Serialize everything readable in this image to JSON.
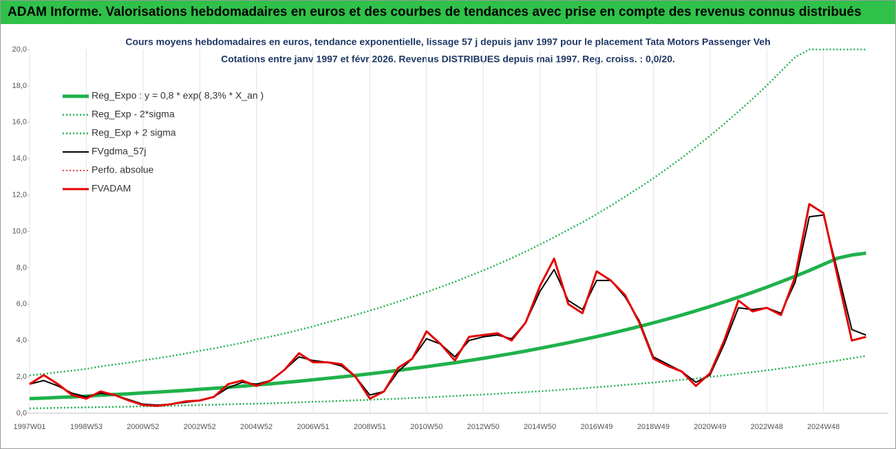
{
  "chart_data": {
    "type": "line",
    "header": "ADAM Informe. Valorisations hebdomadaires en euros et des courbes de tendances avec prise en compte des revenus connus distribués",
    "title": "Cours moyens hebdomadaires en euros, tendance exponentielle, lissage 57 j depuis janv 1997 pour le placement Tata Motors Passenger Veh",
    "subtitle": "Cotations entre janv 1997 et févr 2026. Revenus DISTRIBUES depuis mai 1997. Reg. croiss. : 0,0/20.",
    "categories": [
      "1997W01",
      null,
      null,
      null,
      "1998W53",
      null,
      null,
      null,
      "2000W52",
      null,
      null,
      null,
      "2002W52",
      null,
      null,
      null,
      "2004W52",
      null,
      null,
      null,
      "2006W51",
      null,
      null,
      null,
      "2008W51",
      null,
      null,
      null,
      "2010W50",
      null,
      null,
      null,
      "2012W50",
      null,
      null,
      null,
      "2014W50",
      null,
      null,
      null,
      "2016W49",
      null,
      null,
      null,
      "2018W49",
      null,
      null,
      null,
      "2020W49",
      null,
      null,
      null,
      "2022W48",
      null,
      null,
      null,
      "2024W48",
      null,
      null,
      null
    ],
    "ylim": [
      0,
      20
    ],
    "yticks": [
      {
        "value": 0,
        "label": "0,0"
      },
      {
        "value": 2,
        "label": "2,0"
      },
      {
        "value": 4,
        "label": "4,0"
      },
      {
        "value": 6,
        "label": "6,0"
      },
      {
        "value": 8,
        "label": "8,0"
      },
      {
        "value": 10,
        "label": "10,0"
      },
      {
        "value": 12,
        "label": "12,0"
      },
      {
        "value": 14,
        "label": "14,0"
      },
      {
        "value": 16,
        "label": "16,0"
      },
      {
        "value": 18,
        "label": "18,0"
      },
      {
        "value": 20,
        "label": "20,0"
      }
    ],
    "grid": "x",
    "legend": "top-left",
    "series": [
      {
        "name": "Reg_Expo : y = 0,8 * exp( 8,3% *  X_an )",
        "color": "#1fb14b",
        "width": 5,
        "dash": "solid",
        "values": [
          0.8,
          0.83,
          0.87,
          0.9,
          0.94,
          0.99,
          1.03,
          1.07,
          1.12,
          1.16,
          1.21,
          1.26,
          1.32,
          1.37,
          1.43,
          1.49,
          1.56,
          1.62,
          1.69,
          1.76,
          1.84,
          1.92,
          2.0,
          2.08,
          2.17,
          2.26,
          2.36,
          2.46,
          2.56,
          2.67,
          2.78,
          2.9,
          3.02,
          3.15,
          3.28,
          3.42,
          3.57,
          3.72,
          3.88,
          4.04,
          4.21,
          4.39,
          4.58,
          4.77,
          4.97,
          5.18,
          5.4,
          5.63,
          5.87,
          6.12,
          6.38,
          6.65,
          6.93,
          7.23,
          7.53,
          7.85,
          8.19,
          8.53,
          8.7,
          8.8
        ]
      },
      {
        "name": "Reg_Exp - 2*sigma",
        "color": "#1fb14b",
        "width": 2.5,
        "dash": "dotted",
        "values": [
          0.27,
          0.28,
          0.3,
          0.31,
          0.32,
          0.34,
          0.35,
          0.36,
          0.38,
          0.39,
          0.41,
          0.43,
          0.45,
          0.47,
          0.49,
          0.51,
          0.53,
          0.55,
          0.57,
          0.6,
          0.63,
          0.65,
          0.68,
          0.71,
          0.74,
          0.77,
          0.8,
          0.84,
          0.87,
          0.91,
          0.95,
          0.99,
          1.03,
          1.07,
          1.12,
          1.16,
          1.21,
          1.26,
          1.32,
          1.37,
          1.43,
          1.49,
          1.56,
          1.62,
          1.69,
          1.76,
          1.84,
          1.91,
          2.0,
          2.08,
          2.17,
          2.26,
          2.36,
          2.46,
          2.56,
          2.67,
          2.78,
          2.9,
          3.03,
          3.15
        ]
      },
      {
        "name": "Reg_Exp + 2 sigma",
        "color": "#1fb14b",
        "width": 2.5,
        "dash": "dotted",
        "values": [
          2.08,
          2.16,
          2.26,
          2.34,
          2.44,
          2.57,
          2.68,
          2.78,
          2.91,
          3.02,
          3.15,
          3.28,
          3.43,
          3.56,
          3.72,
          3.87,
          4.06,
          4.21,
          4.39,
          4.58,
          4.78,
          4.99,
          5.2,
          5.41,
          5.64,
          5.88,
          6.14,
          6.4,
          6.66,
          6.94,
          7.23,
          7.54,
          7.85,
          8.19,
          8.53,
          8.89,
          9.28,
          9.67,
          10.09,
          10.5,
          10.95,
          11.41,
          11.91,
          12.4,
          12.92,
          13.47,
          14.04,
          14.64,
          15.26,
          15.91,
          16.59,
          17.29,
          18.02,
          18.8,
          19.58,
          20,
          20,
          20,
          20,
          20
        ]
      },
      {
        "name": "FVgdma_57j",
        "color": "#000000",
        "width": 2,
        "dash": "solid",
        "values": [
          1.6,
          1.8,
          1.5,
          1.1,
          0.9,
          1.1,
          1.0,
          0.75,
          0.5,
          0.45,
          0.5,
          0.6,
          0.7,
          0.9,
          1.4,
          1.7,
          1.6,
          1.8,
          2.4,
          3.1,
          2.9,
          2.8,
          2.6,
          2.0,
          1.0,
          1.2,
          2.3,
          3.0,
          4.1,
          3.8,
          3.1,
          4.0,
          4.2,
          4.3,
          4.1,
          5.0,
          6.7,
          7.9,
          6.2,
          5.7,
          7.3,
          7.3,
          6.4,
          5.1,
          3.1,
          2.7,
          2.3,
          1.7,
          2.1,
          3.8,
          5.8,
          5.7,
          5.8,
          5.5,
          7.2,
          10.8,
          10.9,
          7.8,
          4.6,
          4.3
        ]
      },
      {
        "name": "Perfo. absolue",
        "color": "#e30000",
        "width": 1.5,
        "dash": "dotted",
        "values": [
          1.6,
          2.1,
          1.6,
          1.0,
          0.8,
          1.2,
          1.0,
          0.7,
          0.45,
          0.4,
          0.5,
          0.65,
          0.7,
          0.9,
          1.6,
          1.8,
          1.5,
          1.8,
          2.4,
          3.3,
          2.8,
          2.8,
          2.7,
          2.0,
          0.8,
          1.2,
          2.5,
          3.0,
          4.5,
          3.8,
          2.9,
          4.2,
          4.3,
          4.4,
          4.0,
          5.0,
          7.0,
          8.5,
          6.0,
          5.5,
          7.8,
          7.3,
          6.5,
          5.0,
          3.0,
          2.6,
          2.3,
          1.5,
          2.2,
          4.0,
          6.2,
          5.6,
          5.8,
          5.4,
          7.5,
          11.5,
          11.0,
          7.5,
          4.0,
          4.2
        ]
      },
      {
        "name": "FVADAM",
        "color": "#e30000",
        "width": 3,
        "dash": "solid",
        "values": [
          1.6,
          2.1,
          1.6,
          1.0,
          0.8,
          1.2,
          1.0,
          0.7,
          0.45,
          0.4,
          0.5,
          0.65,
          0.7,
          0.9,
          1.6,
          1.8,
          1.5,
          1.8,
          2.4,
          3.3,
          2.8,
          2.8,
          2.7,
          2.0,
          0.8,
          1.2,
          2.5,
          3.0,
          4.5,
          3.8,
          2.9,
          4.2,
          4.3,
          4.4,
          4.0,
          5.0,
          7.0,
          8.5,
          6.0,
          5.5,
          7.8,
          7.3,
          6.5,
          5.0,
          3.0,
          2.6,
          2.3,
          1.5,
          2.2,
          4.0,
          6.2,
          5.6,
          5.8,
          5.4,
          7.5,
          11.5,
          11.0,
          7.5,
          4.0,
          4.2
        ]
      }
    ]
  }
}
